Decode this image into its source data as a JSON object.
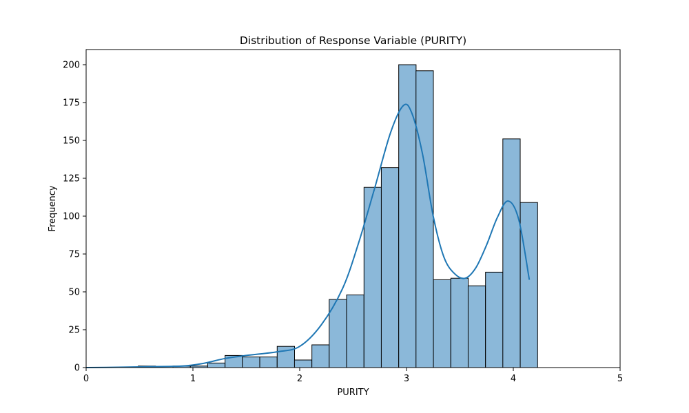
{
  "chart_data": {
    "type": "bar",
    "title": "Distribution of Response Variable (PURITY)",
    "xlabel": "PURITY",
    "ylabel": "Frequency",
    "xlim": [
      0,
      5
    ],
    "ylim": [
      0,
      210
    ],
    "xticks": [
      "0",
      "1",
      "2",
      "3",
      "4",
      "5"
    ],
    "yticks": [
      "0",
      "25",
      "50",
      "75",
      "100",
      "125",
      "150",
      "175",
      "200"
    ],
    "bin_width": 0.1626,
    "bins": [
      {
        "x0": 0.0,
        "count": 0
      },
      {
        "x0": 0.163,
        "count": 0
      },
      {
        "x0": 0.325,
        "count": 0
      },
      {
        "x0": 0.488,
        "count": 1
      },
      {
        "x0": 0.65,
        "count": 0
      },
      {
        "x0": 0.813,
        "count": 1
      },
      {
        "x0": 0.976,
        "count": 1
      },
      {
        "x0": 1.138,
        "count": 3
      },
      {
        "x0": 1.301,
        "count": 8
      },
      {
        "x0": 1.463,
        "count": 7
      },
      {
        "x0": 1.626,
        "count": 7
      },
      {
        "x0": 1.789,
        "count": 14
      },
      {
        "x0": 1.951,
        "count": 5
      },
      {
        "x0": 2.114,
        "count": 15
      },
      {
        "x0": 2.276,
        "count": 45
      },
      {
        "x0": 2.439,
        "count": 48
      },
      {
        "x0": 2.602,
        "count": 119
      },
      {
        "x0": 2.764,
        "count": 132
      },
      {
        "x0": 2.927,
        "count": 200
      },
      {
        "x0": 3.089,
        "count": 196
      },
      {
        "x0": 3.252,
        "count": 58
      },
      {
        "x0": 3.415,
        "count": 59
      },
      {
        "x0": 3.577,
        "count": 54
      },
      {
        "x0": 3.74,
        "count": 63
      },
      {
        "x0": 3.902,
        "count": 151
      },
      {
        "x0": 4.065,
        "count": 109
      }
    ],
    "kde": {
      "x": [
        0.0,
        0.3,
        0.6,
        0.9,
        1.1,
        1.3,
        1.5,
        1.8,
        2.0,
        2.2,
        2.4,
        2.55,
        2.7,
        2.85,
        2.97,
        3.05,
        3.15,
        3.25,
        3.35,
        3.45,
        3.55,
        3.65,
        3.75,
        3.85,
        3.95,
        4.05,
        4.15
      ],
      "y": [
        0.0,
        0.2,
        0.6,
        1.0,
        2.8,
        6.0,
        8.0,
        10.5,
        14.0,
        28.0,
        52.0,
        82.0,
        118.0,
        155.0,
        173.0,
        168.0,
        141.0,
        100.0,
        73.0,
        62.0,
        59.0,
        66.0,
        81.0,
        99.0,
        110.0,
        98.0,
        58.0
      ]
    },
    "bar_color": "#8bb8d9",
    "bar_edge": "#000000",
    "line_color": "#1f77b4",
    "grid": false,
    "legend": "none"
  }
}
